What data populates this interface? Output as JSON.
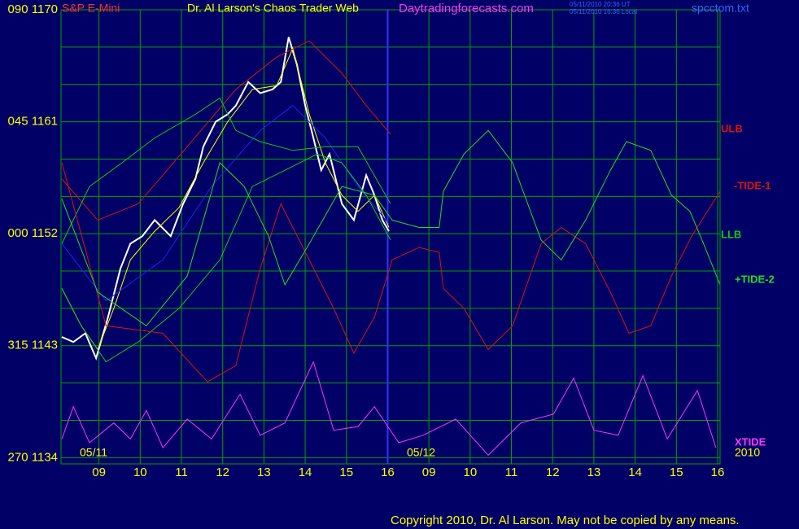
{
  "chart_data": {
    "type": "line",
    "title": "Dr. Al Larson's Chaos Trader Web",
    "symbol": "S&P E-Mini",
    "site": "Daytradingforecasts.com",
    "timestamp_ut": "05/11/2010 20:36 UT",
    "timestamp_local": "05/11/2010 16:36 Local",
    "file": "spcctom.txt",
    "date_labels": [
      "05/11",
      "05/12"
    ],
    "year": "2010",
    "copyright": "Copyright 2010, Dr. Al Larson. May not be copied by any means.",
    "xlim": [
      8.08,
      24.06
    ],
    "ylim": [
      1133.5,
      1170
    ],
    "xticks": [
      {
        "value": 9,
        "label": "09"
      },
      10,
      11,
      12,
      13,
      14,
      15,
      16,
      {
        "value": 17,
        "label": "09"
      },
      {
        "value": 18,
        "label": "10"
      },
      {
        "value": 19,
        "label": "11"
      },
      {
        "value": 20,
        "label": "12"
      },
      {
        "value": 21,
        "label": "13"
      },
      {
        "value": 22,
        "label": "14"
      },
      {
        "value": 23,
        "label": "15"
      },
      {
        "value": 24,
        "label": "16"
      }
    ],
    "yticks": [
      {
        "value": 1170,
        "label": "090 1170"
      },
      {
        "value": 1161,
        "label": "045 1161"
      },
      {
        "value": 1152,
        "label": "000 1152"
      },
      {
        "value": 1143,
        "label": "315 1143"
      },
      {
        "value": 1134,
        "label": "270 1134"
      }
    ],
    "ygrid": [
      1170,
      1167,
      1164,
      1161,
      1158,
      1155,
      1152,
      1149,
      1146,
      1143,
      1140,
      1137,
      1134
    ],
    "grid": true,
    "grid_color": "#00a000",
    "background": "#000066",
    "series": [
      {
        "color": "#ffffff",
        "x": [
          8.1,
          8.38,
          8.67,
          8.93,
          9.22,
          9.52,
          9.76,
          10.05,
          10.35,
          10.74,
          11.04,
          11.34,
          11.53,
          11.83,
          12.12,
          12.32,
          12.62,
          12.91,
          13.21,
          13.41,
          13.6,
          13.8,
          14.0,
          14.2,
          14.39,
          14.59,
          14.89,
          15.18,
          15.48,
          15.68,
          15.87,
          16.03
        ],
        "values": [
          1143.7,
          1143.3,
          1144.0,
          1142.0,
          1145.3,
          1149.2,
          1151.2,
          1151.8,
          1153.1,
          1151.8,
          1154.4,
          1156.4,
          1159.0,
          1161.0,
          1161.6,
          1162.3,
          1164.2,
          1163.3,
          1163.6,
          1164.2,
          1167.8,
          1165.6,
          1162.3,
          1159.7,
          1157.1,
          1158.4,
          1154.4,
          1153.1,
          1156.7,
          1155.1,
          1153.1,
          1152.2
        ]
      },
      {
        "color": "#ffff00",
        "x": [
          8.1,
          8.57,
          8.97,
          9.36,
          9.76,
          10.35,
          10.94,
          11.53,
          12.12,
          12.72,
          13.31,
          13.7,
          14.1,
          14.49,
          14.89,
          15.28,
          15.68,
          16.03
        ],
        "values": [
          1147.6,
          1144.6,
          1142.7,
          1146.0,
          1149.9,
          1152.2,
          1154.1,
          1157.7,
          1161.0,
          1163.6,
          1163.9,
          1166.9,
          1161.6,
          1157.7,
          1155.1,
          1153.8,
          1155.1,
          1152.5
        ]
      },
      {
        "color": "#2222ee",
        "x": [
          8.1,
          9.17,
          10.55,
          11.73,
          12.91,
          13.7,
          14.49,
          15.28,
          16.03
        ],
        "values": [
          1151.2,
          1146.6,
          1149.9,
          1155.8,
          1160.3,
          1162.3,
          1159.7,
          1155.8,
          1152.8
        ]
      },
      {
        "name": "ULB",
        "color": "#dd1111",
        "x": [
          8.1,
          8.97,
          9.95,
          11.14,
          12.32,
          13.31,
          14.1,
          14.89,
          15.48,
          16.07
        ],
        "values": [
          1156.4,
          1153.1,
          1154.4,
          1159.0,
          1163.6,
          1166.2,
          1167.5,
          1164.9,
          1162.3,
          1160.0
        ]
      },
      {
        "color": "#11cc11",
        "x": [
          8.1,
          8.77,
          9.56,
          10.35,
          11.34,
          11.93,
          12.32,
          12.91,
          13.7,
          14.49,
          15.28,
          16.07
        ],
        "values": [
          1151.2,
          1155.8,
          1157.7,
          1159.7,
          1161.6,
          1162.9,
          1160.3,
          1159.4,
          1158.7,
          1159.0,
          1159.0,
          1154.4
        ]
      },
      {
        "name": "LLB",
        "color": "#11cc11",
        "x": [
          8.1,
          8.57,
          9.17,
          9.95,
          10.94,
          11.93,
          12.72,
          13.51,
          14.29,
          14.89,
          15.48,
          16.07
        ],
        "values": [
          1147.6,
          1144.6,
          1141.7,
          1143.3,
          1146.0,
          1149.9,
          1155.8,
          1157.1,
          1158.4,
          1157.7,
          1155.1,
          1151.5
        ]
      },
      {
        "name": "-TIDE-1",
        "color": "#dd1111",
        "x": [
          8.1,
          9.17,
          10.55,
          11.63,
          12.32,
          12.91,
          13.41,
          13.9,
          14.69,
          15.18,
          15.68,
          16.11,
          16.76,
          17.25,
          17.35,
          17.85,
          18.44,
          19.03,
          19.72,
          20.21,
          20.8,
          21.4,
          21.85,
          22.38,
          22.88,
          23.37,
          24.06
        ],
        "values": [
          1157.7,
          1144.6,
          1144.0,
          1140.1,
          1141.4,
          1149.2,
          1154.4,
          1151.2,
          1146.0,
          1142.4,
          1145.3,
          1149.9,
          1150.9,
          1150.5,
          1147.6,
          1146.0,
          1142.7,
          1144.6,
          1151.2,
          1152.5,
          1151.2,
          1147.3,
          1144.0,
          1144.6,
          1148.6,
          1151.8,
          1155.4
        ]
      },
      {
        "name": "+TIDE-2",
        "color": "#22dd22",
        "x": [
          8.1,
          8.97,
          10.15,
          11.14,
          11.93,
          12.52,
          13.11,
          13.51,
          14.1,
          14.89,
          15.68,
          16.11,
          16.76,
          17.25,
          17.35,
          17.85,
          18.44,
          19.03,
          19.72,
          20.21,
          20.8,
          21.4,
          21.79,
          22.38,
          22.88,
          23.33,
          23.66,
          24.06
        ],
        "values": [
          1154.8,
          1147.3,
          1144.6,
          1148.6,
          1157.7,
          1155.8,
          1151.8,
          1147.9,
          1151.2,
          1155.8,
          1155.1,
          1153.1,
          1152.5,
          1152.5,
          1155.4,
          1158.4,
          1160.3,
          1157.7,
          1151.5,
          1149.9,
          1153.1,
          1157.1,
          1159.4,
          1158.7,
          1155.1,
          1153.8,
          1151.2,
          1147.9
        ]
      },
      {
        "name": "XTIDE",
        "color": "#ff33ff",
        "x": [
          8.1,
          8.38,
          8.77,
          9.36,
          9.76,
          10.15,
          10.55,
          11.14,
          11.73,
          12.42,
          12.91,
          13.51,
          14.2,
          14.69,
          15.28,
          15.68,
          16.27,
          16.86,
          17.65,
          18.44,
          19.23,
          20.02,
          20.51,
          21.0,
          21.59,
          22.19,
          22.78,
          23.51,
          23.96
        ],
        "values": [
          1135.5,
          1138.1,
          1135.2,
          1136.8,
          1135.5,
          1137.8,
          1134.8,
          1137.1,
          1135.5,
          1139.1,
          1135.8,
          1136.8,
          1141.7,
          1136.2,
          1136.5,
          1138.1,
          1135.2,
          1135.8,
          1137.1,
          1134.2,
          1136.8,
          1137.5,
          1140.4,
          1136.2,
          1135.8,
          1140.6,
          1135.5,
          1139.4,
          1134.8
        ]
      }
    ]
  }
}
